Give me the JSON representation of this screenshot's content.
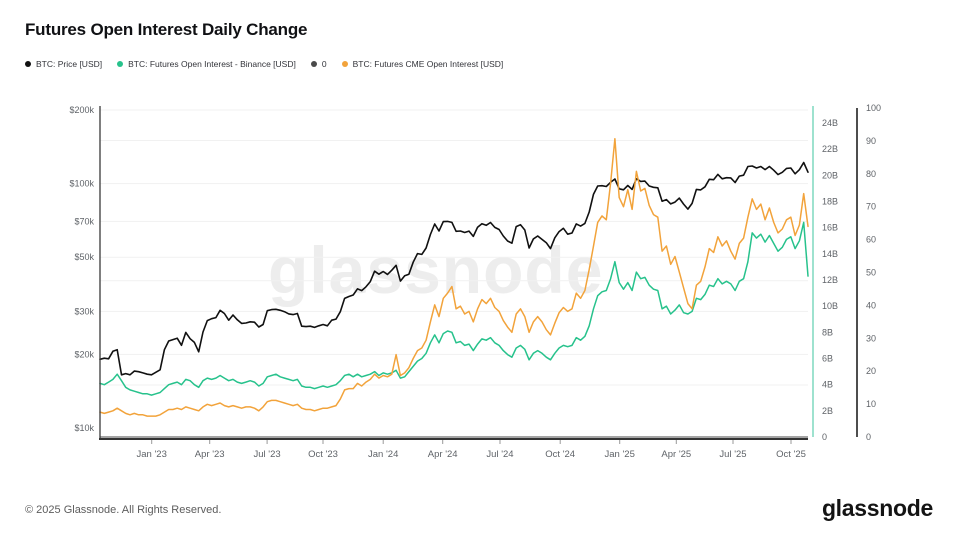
{
  "header": {
    "title": "Futures Open Interest Daily Change"
  },
  "legend": [
    {
      "label": "BTC: Price [USD]",
      "color": "#111111"
    },
    {
      "label": "BTC: Futures Open Interest - Binance [USD]",
      "color": "#27c28c"
    },
    {
      "label": "0",
      "color": "#4a4a4a"
    },
    {
      "label": "BTC: Futures CME Open Interest [USD]",
      "color": "#f2a33b"
    }
  ],
  "watermark": "glassnode",
  "footer": {
    "copyright": "© 2025 Glassnode. All Rights Reserved.",
    "logo": "glassnode"
  },
  "chart_data": {
    "type": "line",
    "x_range": [
      "Oct 2022",
      "Oct 2025"
    ],
    "x_ticks": [
      {
        "label": "Jan '23",
        "f": 0.073
      },
      {
        "label": "Apr '23",
        "f": 0.155
      },
      {
        "label": "Jul '23",
        "f": 0.236
      },
      {
        "label": "Oct '23",
        "f": 0.315
      },
      {
        "label": "Jan '24",
        "f": 0.4
      },
      {
        "label": "Apr '24",
        "f": 0.484
      },
      {
        "label": "Jul '24",
        "f": 0.565
      },
      {
        "label": "Oct '24",
        "f": 0.65
      },
      {
        "label": "Jan '25",
        "f": 0.734
      },
      {
        "label": "Apr '25",
        "f": 0.814
      },
      {
        "label": "Jul '25",
        "f": 0.894
      },
      {
        "label": "Oct '25",
        "f": 0.976
      }
    ],
    "price_axis": {
      "scale": "log",
      "unit": "USD thousands",
      "ticks": [
        {
          "label": "$200k",
          "v": 200
        },
        {
          "label": "$100k",
          "v": 100
        },
        {
          "label": "$70k",
          "v": 70
        },
        {
          "label": "$50k",
          "v": 50
        },
        {
          "label": "$30k",
          "v": 30
        },
        {
          "label": "$20k",
          "v": 20
        },
        {
          "label": "$10k",
          "v": 10
        }
      ],
      "grid_values": [
        15,
        20,
        30,
        40,
        50,
        70,
        100,
        150,
        200
      ]
    },
    "oi_axis": {
      "scale": "linear",
      "unit": "USD billions",
      "min": 0,
      "max": 24,
      "step": 2,
      "color": "#7fd9bf"
    },
    "percent_axis": {
      "scale": "linear",
      "min": 0,
      "max": 100,
      "step": 10,
      "color": "#3a3a3a"
    },
    "series": [
      {
        "name": "BTC: Price [USD]",
        "axis": "price",
        "color": "#111111",
        "width": 1.6,
        "values": [
          19.1,
          19.3,
          19.2,
          20.6,
          20.9,
          16.5,
          16.7,
          16.5,
          17.1,
          17.0,
          16.8,
          16.6,
          16.5,
          16.9,
          17.3,
          20.9,
          22.7,
          23.0,
          23.3,
          21.8,
          24.6,
          23.2,
          22.4,
          20.5,
          24.7,
          27.5,
          28.0,
          28.3,
          30.3,
          29.4,
          27.6,
          29.0,
          27.7,
          26.8,
          26.9,
          27.2,
          27.1,
          25.9,
          26.5,
          30.2,
          30.5,
          30.6,
          30.3,
          29.9,
          29.3,
          29.1,
          29.4,
          26.1,
          26.0,
          26.1,
          25.8,
          26.2,
          26.5,
          26.2,
          27.6,
          27.9,
          29.9,
          33.9,
          34.5,
          35.0,
          37.1,
          36.5,
          37.8,
          39.7,
          43.8,
          42.6,
          43.7,
          42.5,
          44.2,
          46.3,
          39.9,
          42.0,
          42.6,
          47.7,
          51.7,
          51.3,
          54.5,
          61.9,
          68.3,
          64.0,
          69.9,
          70.0,
          69.4,
          63.8,
          64.0,
          63.1,
          63.9,
          60.8,
          66.3,
          68.5,
          67.5,
          69.3,
          66.2,
          64.9,
          61.0,
          58.2,
          57.0,
          66.7,
          67.9,
          64.6,
          54.5,
          59.4,
          61.0,
          59.1,
          57.3,
          54.2,
          60.0,
          63.6,
          65.6,
          62.1,
          62.8,
          68.4,
          67.0,
          68.7,
          76.5,
          90.5,
          97.7,
          98.0,
          97.3,
          101.2,
          104.4,
          95.2,
          94.3,
          98.2,
          94.7,
          104.7,
          102.1,
          102.4,
          97.7,
          96.6,
          96.1,
          84.7,
          86.0,
          82.6,
          84.0,
          87.2,
          82.4,
          78.6,
          83.0,
          94.7,
          94.2,
          97.0,
          104.1,
          103.7,
          109.0,
          104.6,
          105.7,
          105.5,
          101.0,
          107.3,
          108.2,
          117.5,
          118.0,
          115.8,
          117.4,
          114.1,
          117.4,
          113.4,
          108.8,
          111.2,
          115.4,
          115.8,
          109.6,
          114.0,
          122.0,
          111.3
        ]
      },
      {
        "name": "BTC: Futures Open Interest - Binance [USD]",
        "axis": "oi",
        "color": "#27c28c",
        "width": 1.5,
        "values": [
          4.1,
          4.0,
          4.2,
          4.4,
          4.8,
          4.3,
          3.8,
          3.6,
          3.5,
          3.4,
          3.3,
          3.3,
          3.2,
          3.3,
          3.4,
          3.7,
          4.0,
          4.1,
          4.2,
          4.0,
          4.4,
          4.3,
          4.0,
          3.8,
          4.3,
          4.5,
          4.4,
          4.5,
          4.7,
          4.5,
          4.3,
          4.4,
          4.2,
          4.1,
          4.2,
          4.3,
          4.2,
          3.9,
          4.1,
          4.6,
          4.7,
          4.8,
          4.6,
          4.5,
          4.4,
          4.3,
          4.4,
          3.9,
          3.8,
          3.8,
          3.7,
          3.8,
          3.9,
          3.8,
          3.9,
          4.0,
          4.3,
          4.7,
          4.8,
          4.6,
          4.8,
          4.6,
          4.7,
          4.8,
          5.0,
          4.7,
          4.9,
          4.8,
          4.9,
          5.1,
          4.5,
          4.6,
          5.0,
          5.4,
          5.8,
          6.0,
          6.4,
          7.2,
          7.8,
          7.2,
          7.9,
          8.1,
          8.0,
          7.2,
          7.3,
          7.0,
          7.1,
          6.6,
          7.1,
          7.5,
          7.4,
          7.6,
          7.2,
          7.0,
          6.6,
          6.3,
          6.1,
          6.8,
          7.0,
          6.7,
          5.9,
          6.4,
          6.6,
          6.4,
          6.1,
          5.9,
          6.4,
          6.8,
          7.0,
          6.9,
          7.0,
          7.6,
          7.4,
          7.7,
          8.5,
          9.8,
          10.8,
          11.1,
          11.2,
          12.1,
          13.4,
          11.8,
          11.3,
          11.8,
          11.2,
          12.6,
          12.1,
          12.2,
          11.6,
          11.3,
          11.2,
          9.8,
          10.0,
          9.4,
          9.7,
          10.1,
          9.5,
          9.4,
          9.6,
          10.6,
          10.5,
          10.9,
          11.6,
          11.5,
          12.1,
          11.7,
          11.9,
          11.7,
          11.2,
          11.9,
          12.1,
          13.4,
          15.6,
          15.2,
          15.5,
          14.9,
          15.4,
          14.8,
          14.2,
          14.5,
          15.1,
          15.3,
          14.4,
          15.0,
          16.4,
          12.3
        ]
      },
      {
        "name": "0",
        "axis": "percent",
        "color": "#4a4a4a",
        "width": 1,
        "constant": 0
      },
      {
        "name": "BTC: Futures CME Open Interest [USD]",
        "axis": "oi",
        "color": "#f2a33b",
        "width": 1.5,
        "values": [
          1.9,
          1.8,
          1.9,
          2.0,
          2.2,
          2.0,
          1.8,
          1.7,
          1.8,
          1.7,
          1.7,
          1.6,
          1.6,
          1.6,
          1.7,
          1.9,
          2.1,
          2.1,
          2.2,
          2.1,
          2.3,
          2.2,
          2.1,
          2.0,
          2.3,
          2.5,
          2.4,
          2.5,
          2.6,
          2.4,
          2.3,
          2.4,
          2.3,
          2.2,
          2.3,
          2.3,
          2.2,
          2.0,
          2.3,
          2.7,
          2.8,
          2.8,
          2.7,
          2.6,
          2.5,
          2.4,
          2.5,
          2.2,
          2.1,
          2.1,
          2.0,
          2.1,
          2.2,
          2.2,
          2.3,
          2.4,
          2.9,
          3.6,
          3.7,
          3.7,
          4.1,
          3.9,
          4.2,
          4.4,
          4.8,
          4.5,
          4.7,
          4.6,
          4.8,
          6.3,
          4.7,
          4.9,
          5.3,
          6.0,
          6.6,
          6.8,
          7.4,
          8.8,
          10.1,
          9.2,
          10.6,
          11.0,
          11.5,
          9.8,
          10.0,
          9.4,
          9.6,
          8.8,
          9.8,
          10.5,
          10.2,
          10.6,
          9.9,
          9.6,
          8.9,
          8.4,
          8.0,
          9.4,
          9.8,
          9.2,
          8.0,
          8.8,
          9.2,
          8.8,
          8.2,
          7.8,
          8.7,
          9.5,
          9.9,
          9.6,
          9.8,
          11.0,
          10.6,
          11.2,
          12.8,
          14.6,
          16.4,
          16.9,
          16.6,
          19.4,
          22.8,
          18.3,
          17.6,
          18.9,
          17.4,
          20.3,
          18.8,
          19.0,
          17.7,
          17.0,
          16.8,
          14.2,
          14.6,
          13.2,
          13.8,
          12.6,
          11.4,
          10.2,
          9.8,
          11.6,
          11.9,
          13.0,
          14.4,
          14.1,
          15.3,
          14.6,
          15.0,
          14.2,
          13.6,
          14.8,
          15.2,
          16.8,
          18.2,
          17.4,
          17.8,
          16.6,
          17.5,
          16.4,
          15.6,
          15.9,
          16.6,
          16.8,
          15.4,
          16.2,
          18.6,
          16.1
        ]
      }
    ]
  }
}
